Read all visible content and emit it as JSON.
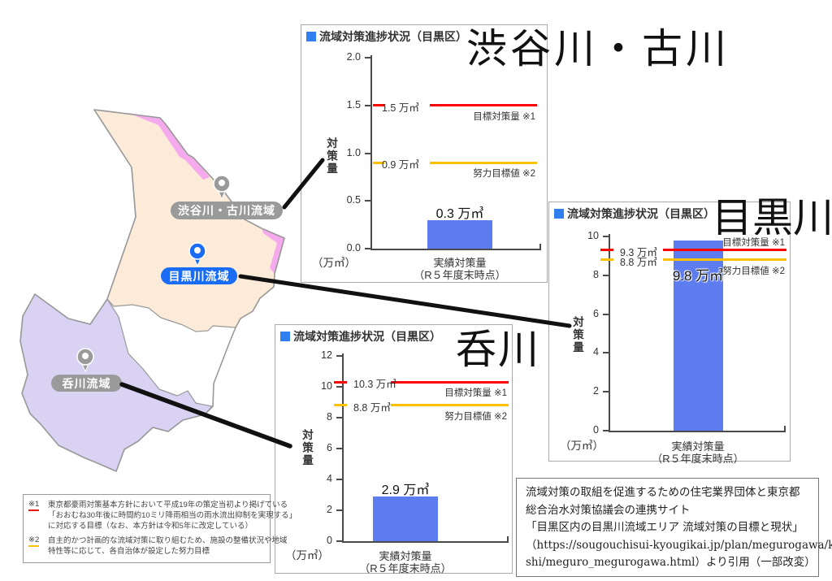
{
  "style": {
    "accent_blue": "#2f7ff0",
    "bar_blue": "#5c7cf0",
    "target_red": "#ff0000",
    "effort_orange": "#ffc000",
    "connector_black": "#111111"
  },
  "map": {
    "pins": [
      {
        "label": "渋谷川・古川流域",
        "color": "#9a9a9a"
      },
      {
        "label": "目黒川流域",
        "color": "#1a6cf5"
      },
      {
        "label": "呑川流域",
        "color": "#9a9a9a"
      }
    ],
    "region_colors": {
      "meguro_basin_fill": "#fcebd9",
      "shibuya_furukawa_fill": "#f6aaee",
      "nomikawa_fill": "#d9d2f3",
      "outline": "#999999"
    }
  },
  "chart_data": [
    {
      "type": "bar",
      "region_title": "渋谷川・古川",
      "title": "流域対策進捗状況（目黒区）",
      "categories": [
        "実績対策量"
      ],
      "values": [
        0.3
      ],
      "bar_value_label": "0.3 万㎥",
      "bar_label_inside": false,
      "ylim": [
        0,
        2
      ],
      "ytick_step": 0.5,
      "ylabel": "対策量",
      "unit_label": "（万㎥）",
      "xlabel_line1": "実績対策量",
      "xlabel_line2": "（R５年度末時点）",
      "reference_lines": [
        {
          "name": "目標対策量 ※1",
          "value": 1.5,
          "value_label": "1.5 万㎥",
          "color": "#ff0000",
          "name_above": false
        },
        {
          "name": "努力目標値 ※2",
          "value": 0.9,
          "value_label": "0.9 万㎥",
          "color": "#ffc000",
          "name_above": false
        }
      ]
    },
    {
      "type": "bar",
      "region_title": "目黒川",
      "title": "流域対策進捗状況（目黒区）",
      "categories": [
        "実績対策量"
      ],
      "values": [
        9.8
      ],
      "bar_value_label": "9.8 万㎥",
      "bar_label_inside": true,
      "ylim": [
        0,
        10
      ],
      "ytick_step": 2,
      "ylabel": "対策量",
      "unit_label": "（万㎥）",
      "xlabel_line1": "実績対策量",
      "xlabel_line2": "（R５年度末時点）",
      "reference_lines": [
        {
          "name": "目標対策量 ※1",
          "value": 9.3,
          "value_label": "9.3 万㎥",
          "color": "#ff0000",
          "name_above": true
        },
        {
          "name": "努力目標値 ※2",
          "value": 8.8,
          "value_label": "8.8 万㎥",
          "color": "#ffc000",
          "name_above": false
        }
      ]
    },
    {
      "type": "bar",
      "region_title": "呑川",
      "title": "流域対策進捗状況（目黒区）",
      "categories": [
        "実績対策量"
      ],
      "values": [
        2.9
      ],
      "bar_value_label": "2.9 万㎥",
      "bar_label_inside": false,
      "ylim": [
        0,
        12
      ],
      "ytick_step": 2,
      "ylabel": "対策量",
      "unit_label": "（万㎥）",
      "xlabel_line1": "実績対策量",
      "xlabel_line2": "（R５年度末時点）",
      "reference_lines": [
        {
          "name": "目標対策量 ※1",
          "value": 10.3,
          "value_label": "10.3 万㎥",
          "color": "#ff0000",
          "name_above": false
        },
        {
          "name": "努力目標値 ※2",
          "value": 8.8,
          "value_label": "8.8 万㎥",
          "color": "#ffc000",
          "name_above": false
        }
      ]
    }
  ],
  "footnotes": {
    "items": [
      {
        "marker": "※1",
        "marker_color": "#e8180c",
        "lines": [
          "東京都豪雨対策基本方針において平成19年の策定当初より掲げている",
          "「おおむね30年後に時間約10ミリ降雨相当の雨水流出抑制を実現する」",
          "に対応する目標（なお、本方針は令和5年に改定している）"
        ]
      },
      {
        "marker": "※2",
        "marker_color": "#ffc000",
        "lines": [
          "自主的かつ計画的な流域対策に取り組むため、施設の整備状況や地域",
          "特性等に応じて、各自治体が設定した努力目標"
        ]
      }
    ]
  },
  "source_box": {
    "lines": [
      "流域対策の取組を促進するための住宅業界団体と東京都",
      "総合治水対策協議会の連携サイト",
      "「目黒区内の目黒川流域エリア 流域対策の目標と現状」",
      "（https://sougouchisui-kyougikai.jp/plan/megurogawa/ku-",
      "shi/meguro_megurogawa.html）より引用（一部改変）"
    ]
  }
}
